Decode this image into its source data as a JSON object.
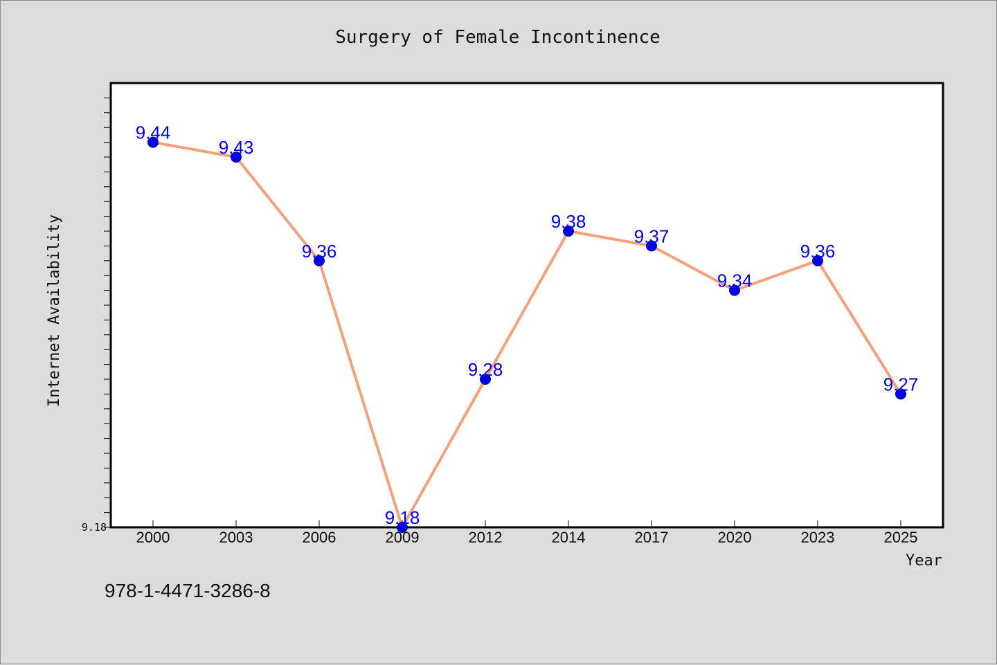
{
  "chart_data": {
    "type": "line",
    "title": "Surgery of Female Incontinence",
    "xlabel": "Year",
    "ylabel": "Internet Availability",
    "categories": [
      "2000",
      "2003",
      "2006",
      "2009",
      "2012",
      "2014",
      "2017",
      "2020",
      "2023",
      "2025"
    ],
    "values": [
      9.44,
      9.43,
      9.36,
      9.18,
      9.28,
      9.38,
      9.37,
      9.34,
      9.36,
      9.27
    ],
    "data_labels": [
      "9.44",
      "9.43",
      "9.36",
      "9.18",
      "9.28",
      "9.38",
      "9.37",
      "9.34",
      "9.36",
      "9.27"
    ],
    "y_tick_labels": [
      "9.18"
    ],
    "ylim": [
      9.18,
      9.48
    ],
    "grid": false,
    "line_color": "#f4a07a",
    "marker_color": "#0000ee",
    "label_color": "#0000ee"
  },
  "footer_text": "978-1-4471-3286-8"
}
